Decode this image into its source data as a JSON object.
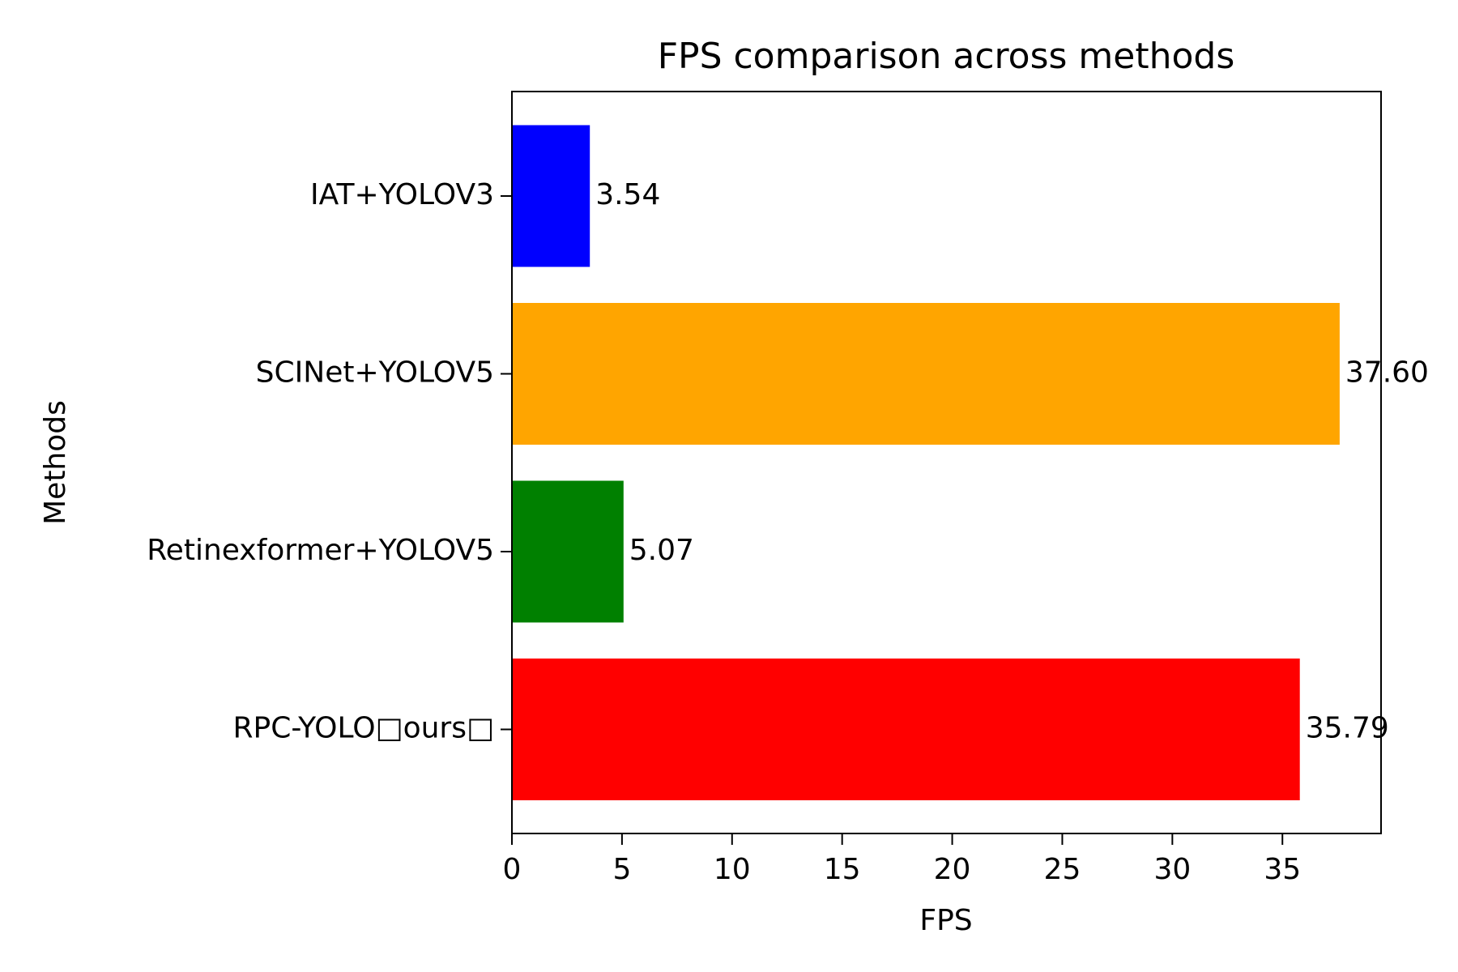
{
  "chart_data": {
    "type": "bar",
    "orientation": "horizontal",
    "title": "FPS comparison across methods",
    "xlabel": "FPS",
    "ylabel": "Methods",
    "categories": [
      "IAT+YOLOV3",
      "SCINet+YOLOV5",
      "Retinexformer+YOLOV5",
      "RPC-YOLO□ours□"
    ],
    "values": [
      3.54,
      37.6,
      5.07,
      35.79
    ],
    "value_labels": [
      "3.54",
      "37.60",
      "5.07",
      "35.79"
    ],
    "colors": [
      "#0000ff",
      "#ffa500",
      "#008000",
      "#ff0000"
    ],
    "xlim": [
      0,
      39.48
    ],
    "xticks": [
      0,
      5,
      10,
      15,
      20,
      25,
      30,
      35
    ],
    "xtick_labels": [
      "0",
      "5",
      "10",
      "15",
      "20",
      "25",
      "30",
      "35"
    ],
    "grid": false,
    "legend": "none"
  }
}
